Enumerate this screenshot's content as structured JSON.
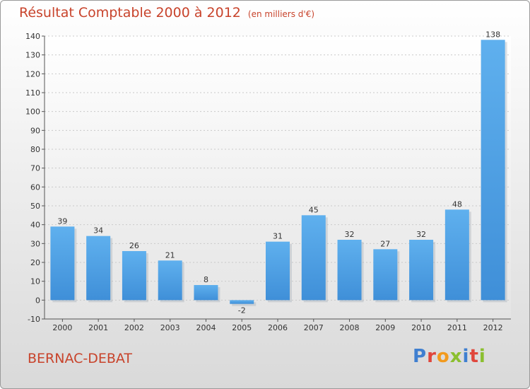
{
  "title": "Résultat Comptable 2000 à 2012",
  "subtitle": "(en milliers d'€)",
  "place": "BERNAC-DEBAT",
  "logo": {
    "text": "Proxiti",
    "colors": [
      "#3f7fd0",
      "#e0463c",
      "#f29a1e",
      "#8bbf2f",
      "#3f7fd0",
      "#e0463c",
      "#8bbf2f"
    ]
  },
  "colors": {
    "bar": "#3f8fd8",
    "bar_light": "#5fb0ee",
    "title": "#c8432b"
  },
  "chart_data": {
    "type": "bar",
    "categories": [
      "2000",
      "2001",
      "2002",
      "2003",
      "2004",
      "2005",
      "2006",
      "2007",
      "2008",
      "2009",
      "2010",
      "2011",
      "2012"
    ],
    "values": [
      39,
      34,
      26,
      21,
      8,
      -2,
      31,
      45,
      32,
      27,
      32,
      48,
      138
    ],
    "ylim": [
      -10,
      140
    ],
    "yticks": [
      -10,
      0,
      10,
      20,
      30,
      40,
      50,
      60,
      70,
      80,
      90,
      100,
      110,
      120,
      130,
      140
    ],
    "grid": true
  }
}
